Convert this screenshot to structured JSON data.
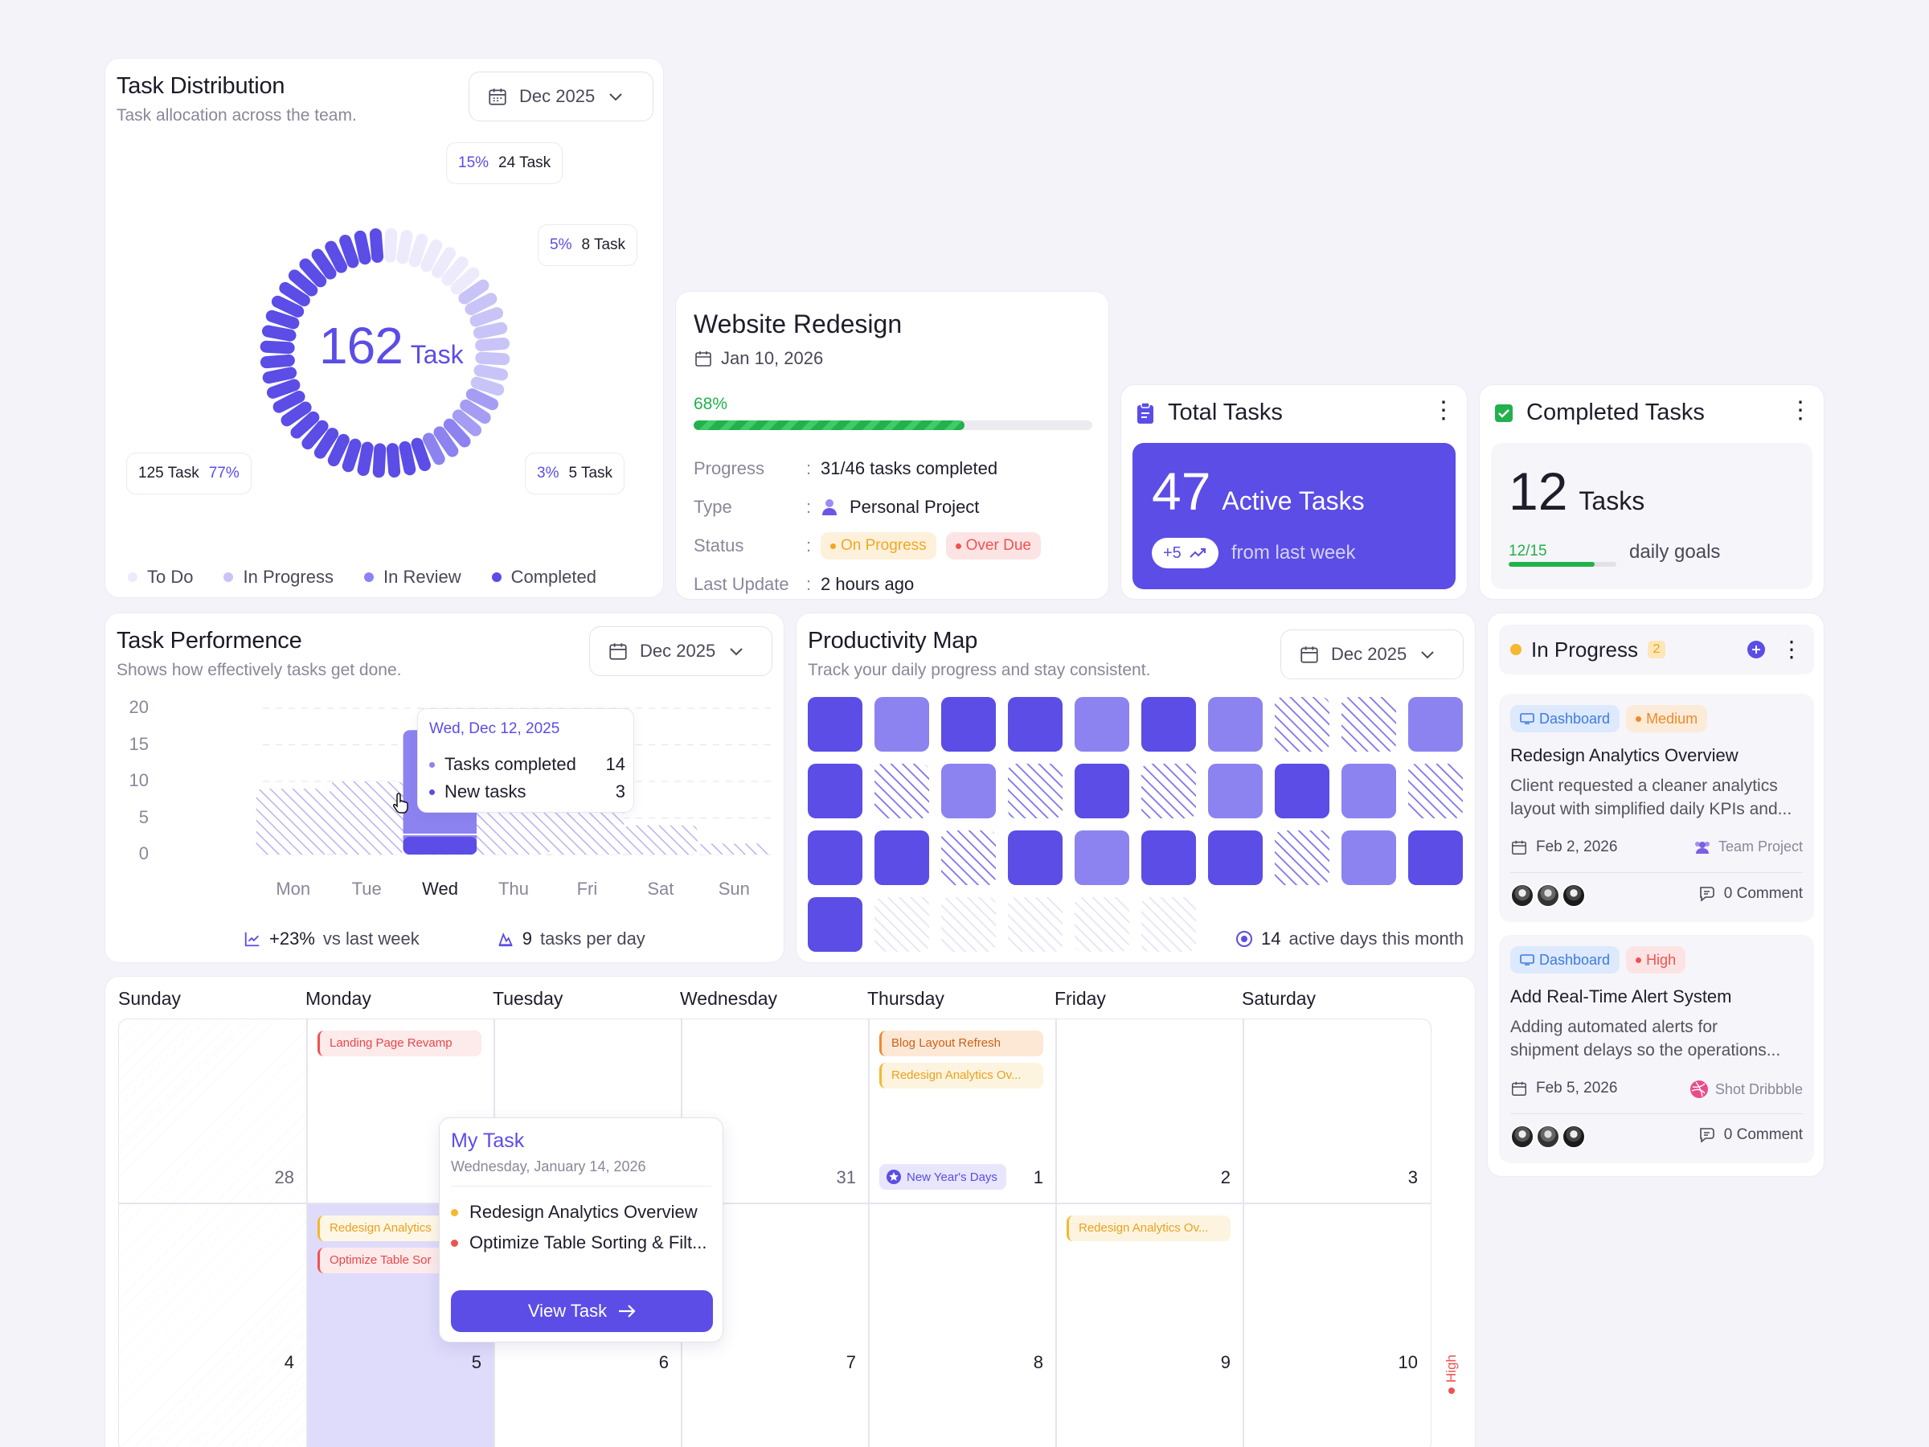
{
  "colors": {
    "accent": "#5b4de6",
    "accent_light": "#8c83f0",
    "success": "#22b14c",
    "danger": "#ef5350",
    "warning": "#f5a623"
  },
  "task_distribution": {
    "title": "Task Distribution",
    "subtitle": "Task allocation across the team.",
    "date": "Dec 2025",
    "total": "162",
    "total_unit": "Task",
    "callouts": [
      {
        "pct": "15%",
        "count": "24 Task"
      },
      {
        "pct": "5%",
        "count": "8 Task"
      },
      {
        "pct": "3%",
        "count": "5 Task"
      },
      {
        "count": "125 Task",
        "pct": "77%"
      }
    ],
    "legend": [
      "To Do",
      "In Progress",
      "In Review",
      "Completed"
    ]
  },
  "project": {
    "title": "Website Redesign",
    "date": "Jan 10, 2026",
    "progress_pct": "68%",
    "progress_value": 0.68,
    "rows": [
      {
        "label": "Progress",
        "value": "31/46 tasks completed"
      },
      {
        "label": "Type",
        "value": "Personal Project"
      },
      {
        "label": "Status"
      },
      {
        "label": "Last Update",
        "value": "2 hours ago"
      }
    ],
    "status_tags": [
      "On Progress",
      "Over Due"
    ],
    "separator": ":"
  },
  "total_tasks": {
    "title": "Total Tasks",
    "count": "47",
    "label": "Active Tasks",
    "delta": "+5",
    "delta_text": "from last week"
  },
  "completed_tasks": {
    "title": "Completed Tasks",
    "count": "12",
    "label": "Tasks",
    "goal": "12/15",
    "goal_value": 0.8,
    "goal_text": "daily goals"
  },
  "performance": {
    "title": "Task Performence",
    "subtitle": "Shows how effectively tasks get done.",
    "date": "Dec 2025",
    "y_ticks": [
      "20",
      "15",
      "10",
      "5",
      "0"
    ],
    "tooltip": {
      "date": "Wed, Dec 12, 2025",
      "rows": [
        {
          "label": "Tasks completed",
          "value": "14"
        },
        {
          "label": "New tasks",
          "value": "3"
        }
      ]
    },
    "footer": [
      {
        "strong": "+23%",
        "text": "vs last week"
      },
      {
        "strong": "9",
        "text": "tasks per day"
      }
    ]
  },
  "chart_data": {
    "type": "bar",
    "categories": [
      "Mon",
      "Tue",
      "Wed",
      "Thu",
      "Fri",
      "Sat",
      "Sun"
    ],
    "values": [
      9,
      10,
      17,
      9,
      9,
      4,
      1.5
    ],
    "highlight": "Wed",
    "ylim": [
      0,
      20
    ],
    "grid": true
  },
  "productivity": {
    "title": "Productivity Map",
    "subtitle": "Track your daily progress and stay consistent.",
    "date": "Dec 2025",
    "cells": [
      "d",
      "l",
      "d",
      "d",
      "l",
      "d",
      "l",
      "h",
      "h",
      "l",
      "d",
      "h",
      "l",
      "h",
      "d",
      "h",
      "l",
      "d",
      "l",
      "h",
      "d",
      "d",
      "h",
      "d",
      "l",
      "d",
      "d",
      "h",
      "l",
      "d",
      "d",
      "e",
      "e",
      "e",
      "e",
      "e"
    ],
    "active_days": "14",
    "active_text": "active days this month"
  },
  "in_progress": {
    "title": "In Progress",
    "count": "2",
    "cards": [
      {
        "tags": [
          "Dashboard",
          "Medium"
        ],
        "title": "Redesign Analytics Overview",
        "desc1": "Client requested a cleaner analytics",
        "desc2": "layout with simplified daily KPIs and...",
        "date": "Feb 2, 2026",
        "team": "Team Project",
        "comments": "0 Comment"
      },
      {
        "tags": [
          "Dashboard",
          "High"
        ],
        "title": "Add Real-Time Alert System",
        "desc1": "Adding automated alerts for",
        "desc2": "shipment delays so the operations...",
        "date": "Feb 5, 2026",
        "team": "Shot Dribbble",
        "comments": "0 Comment"
      }
    ]
  },
  "calendar": {
    "days": [
      "Sunday",
      "Monday",
      "Tuesday",
      "Wednesday",
      "Thursday",
      "Friday",
      "Saturday"
    ],
    "week1": [
      "28",
      "",
      "",
      "31",
      "1",
      "2",
      "3"
    ],
    "week2": [
      "4",
      "5",
      "6",
      "7",
      "8",
      "9",
      "10"
    ],
    "events": {
      "landing": "Landing Page Revamp",
      "blog": "Blog Layout Refresh",
      "redesign_trunc": "Redesign Analytics Ov...",
      "redesign_mon": "Redesign Analytics",
      "optimize_mon": "Optimize Table Sor",
      "holiday": "New Year's Days"
    },
    "popup": {
      "title": "My Task",
      "date": "Wednesday, January 14, 2026",
      "items": [
        "Redesign Analytics Overview",
        "Optimize Table Sorting & Filt..."
      ],
      "button": "View Task"
    },
    "side_label": "High"
  }
}
